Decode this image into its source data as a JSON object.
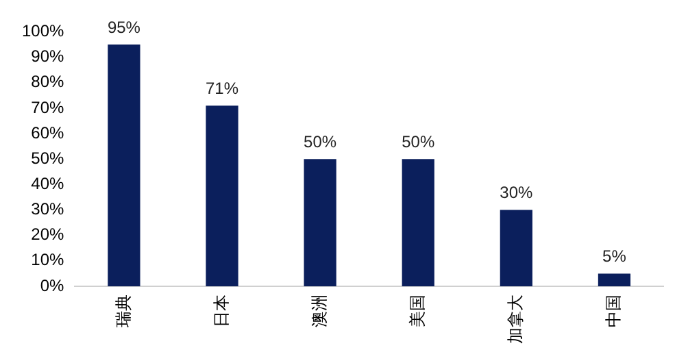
{
  "chart_data": {
    "type": "bar",
    "categories": [
      "瑞典",
      "日本",
      "澳洲",
      "美国",
      "加拿大",
      "中国"
    ],
    "values": [
      95,
      71,
      50,
      50,
      30,
      5
    ],
    "color": "#0b1f5c",
    "value_labels": [
      "95%",
      "71%",
      "50%",
      "50%",
      "30%",
      "5%"
    ],
    "ylim": [
      0,
      100
    ],
    "yticks": [
      {
        "value": 0,
        "label": "0%"
      },
      {
        "value": 10,
        "label": "10%"
      },
      {
        "value": 20,
        "label": "20%"
      },
      {
        "value": 30,
        "label": "30%"
      },
      {
        "value": 40,
        "label": "40%"
      },
      {
        "value": 50,
        "label": "50%"
      },
      {
        "value": 60,
        "label": "60%"
      },
      {
        "value": 70,
        "label": "70%"
      },
      {
        "value": 80,
        "label": "80%"
      },
      {
        "value": 90,
        "label": "90%"
      },
      {
        "value": 100,
        "label": "100%"
      }
    ],
    "grid": false,
    "legend": false
  }
}
